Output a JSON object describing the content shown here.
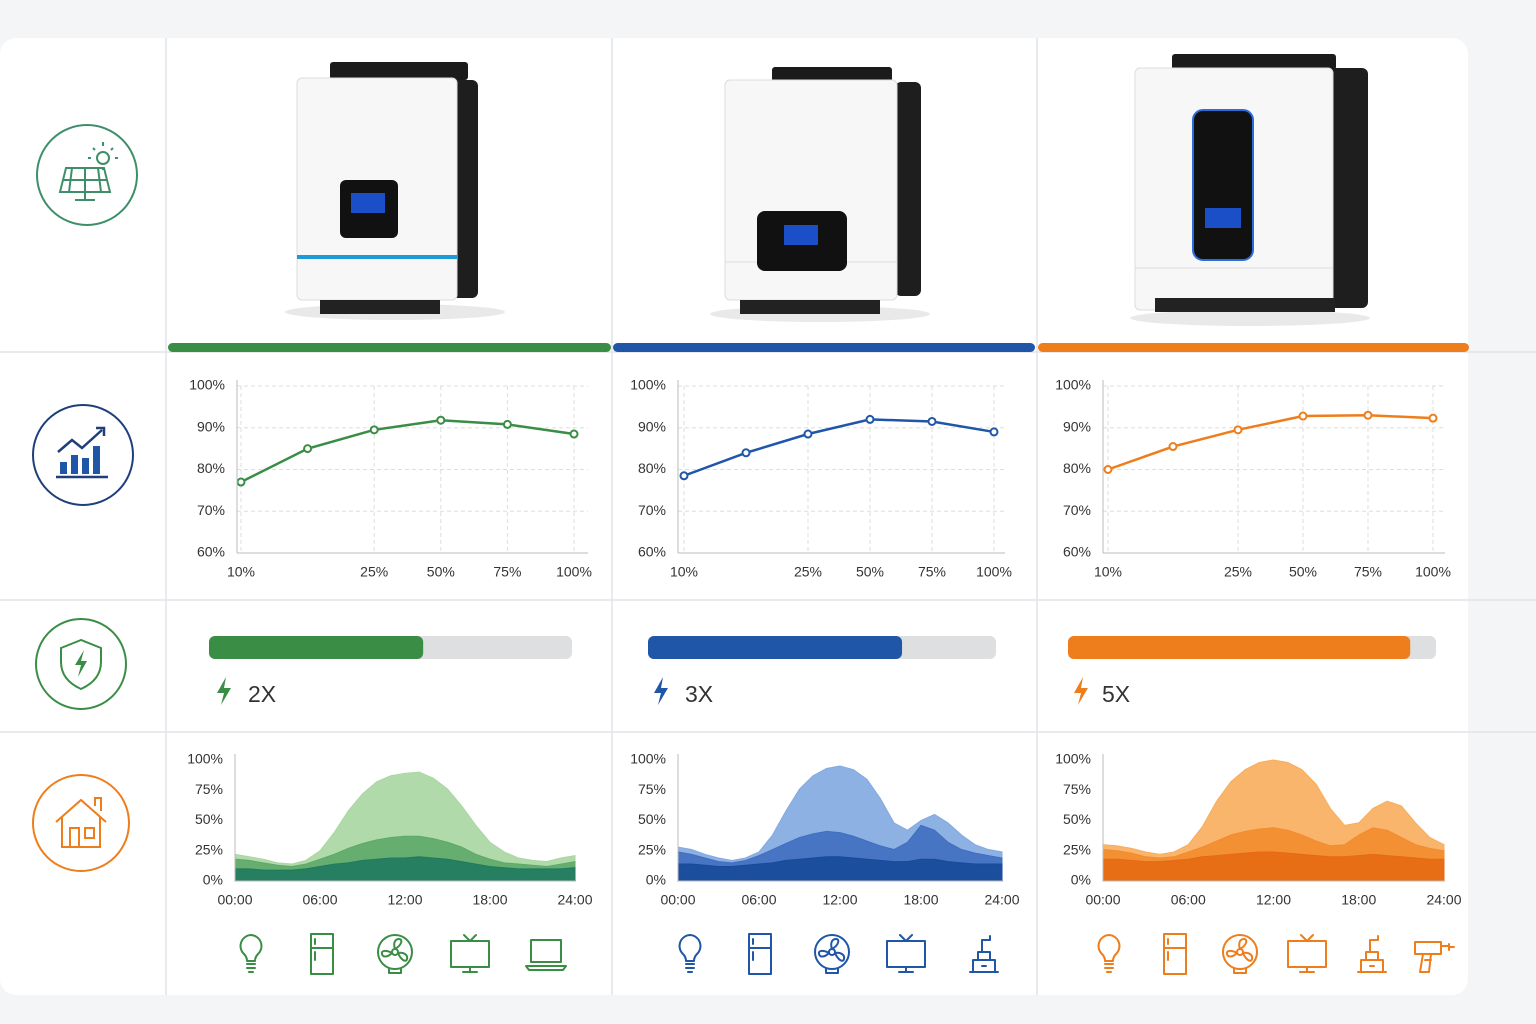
{
  "chart_data": [
    {
      "type": "line",
      "color": "#3a8d45",
      "grid": true,
      "categories": [
        "10%",
        null,
        "25%",
        "50%",
        "75%",
        "100%"
      ],
      "values": [
        77,
        85,
        89.5,
        91.8,
        90.8,
        88.5
      ],
      "ylim": [
        60,
        100
      ],
      "yticks": [
        {
          "value": 60,
          "label": "60%"
        },
        {
          "value": 70,
          "label": "70%"
        },
        {
          "value": 80,
          "label": "80%"
        },
        {
          "value": 90,
          "label": "90%"
        },
        {
          "value": 100,
          "label": "100%"
        }
      ]
    },
    {
      "type": "line",
      "color": "#1f56a8",
      "grid": true,
      "categories": [
        "10%",
        null,
        "25%",
        "50%",
        "75%",
        "100%"
      ],
      "values": [
        78.5,
        84,
        88.5,
        92,
        91.5,
        89
      ],
      "ylim": [
        60,
        100
      ],
      "yticks": [
        {
          "value": 60,
          "label": "60%"
        },
        {
          "value": 70,
          "label": "70%"
        },
        {
          "value": 80,
          "label": "80%"
        },
        {
          "value": 90,
          "label": "90%"
        },
        {
          "value": 100,
          "label": "100%"
        }
      ]
    },
    {
      "type": "line",
      "color": "#ee7d1b",
      "grid": true,
      "categories": [
        "10%",
        null,
        "25%",
        "50%",
        "75%",
        "100%"
      ],
      "values": [
        80,
        85.5,
        89.5,
        92.8,
        93,
        92.3
      ],
      "ylim": [
        60,
        100
      ],
      "yticks": [
        {
          "value": 60,
          "label": "60%"
        },
        {
          "value": 70,
          "label": "70%"
        },
        {
          "value": 80,
          "label": "80%"
        },
        {
          "value": 90,
          "label": "90%"
        },
        {
          "value": 100,
          "label": "100%"
        }
      ]
    },
    {
      "type": "area",
      "grid": false,
      "categories": [
        "00:00",
        null,
        null,
        null,
        null,
        null,
        "06:00",
        null,
        null,
        null,
        null,
        null,
        "12:00",
        null,
        null,
        null,
        null,
        null,
        "18:00",
        null,
        null,
        null,
        null,
        null,
        "24:00"
      ],
      "ylim": [
        0,
        100
      ],
      "yticks": [
        {
          "value": 0,
          "label": "0%"
        },
        {
          "value": 25,
          "label": "25%"
        },
        {
          "value": 50,
          "label": "50%"
        },
        {
          "value": 75,
          "label": "75%"
        },
        {
          "value": 100,
          "label": "100%"
        }
      ],
      "series": [
        {
          "color": "#a9d6a2",
          "values": [
            22,
            20,
            18,
            15,
            14,
            17,
            25,
            40,
            58,
            72,
            82,
            87,
            89,
            90,
            85,
            76,
            62,
            46,
            32,
            24,
            19,
            17,
            16,
            19,
            21
          ]
        },
        {
          "color": "#5ea968",
          "values": [
            18,
            17,
            15,
            13,
            12,
            14,
            18,
            22,
            27,
            31,
            34,
            36,
            37,
            37,
            35,
            32,
            28,
            22,
            18,
            15,
            14,
            13,
            12,
            14,
            16
          ]
        },
        {
          "color": "#1f7a5e",
          "values": [
            10,
            10,
            9,
            9,
            9,
            10,
            12,
            14,
            15,
            17,
            18,
            19,
            19,
            20,
            19,
            18,
            16,
            14,
            12,
            11,
            10,
            10,
            10,
            10,
            11
          ]
        }
      ]
    },
    {
      "type": "area",
      "grid": false,
      "categories": [
        "00:00",
        null,
        null,
        null,
        null,
        null,
        "06:00",
        null,
        null,
        null,
        null,
        null,
        "12:00",
        null,
        null,
        null,
        null,
        null,
        "18:00",
        null,
        null,
        null,
        null,
        null,
        "24:00"
      ],
      "ylim": [
        0,
        100
      ],
      "yticks": [
        {
          "value": 0,
          "label": "0%"
        },
        {
          "value": 25,
          "label": "25%"
        },
        {
          "value": 50,
          "label": "50%"
        },
        {
          "value": 75,
          "label": "75%"
        },
        {
          "value": 100,
          "label": "100%"
        }
      ],
      "series": [
        {
          "color": "#82a9e0",
          "values": [
            28,
            26,
            22,
            19,
            17,
            19,
            24,
            38,
            58,
            76,
            87,
            93,
            95,
            92,
            84,
            68,
            48,
            42,
            50,
            55,
            48,
            38,
            30,
            26,
            24
          ]
        },
        {
          "color": "#3f6fc0",
          "values": [
            24,
            22,
            19,
            16,
            15,
            17,
            21,
            26,
            31,
            36,
            39,
            41,
            40,
            37,
            33,
            29,
            26,
            32,
            46,
            42,
            32,
            26,
            23,
            21,
            19
          ]
        },
        {
          "color": "#174a9a",
          "values": [
            14,
            14,
            13,
            12,
            12,
            13,
            14,
            15,
            17,
            18,
            19,
            20,
            20,
            19,
            18,
            17,
            16,
            16,
            18,
            18,
            16,
            15,
            14,
            14,
            14
          ]
        }
      ]
    },
    {
      "type": "area",
      "grid": false,
      "categories": [
        "00:00",
        null,
        null,
        null,
        null,
        null,
        "06:00",
        null,
        null,
        null,
        null,
        null,
        "12:00",
        null,
        null,
        null,
        null,
        null,
        "18:00",
        null,
        null,
        null,
        null,
        null,
        "24:00"
      ],
      "ylim": [
        0,
        100
      ],
      "yticks": [
        {
          "value": 0,
          "label": "0%"
        },
        {
          "value": 25,
          "label": "25%"
        },
        {
          "value": 50,
          "label": "50%"
        },
        {
          "value": 75,
          "label": "75%"
        },
        {
          "value": 100,
          "label": "100%"
        }
      ],
      "series": [
        {
          "color": "#f8ad5c",
          "values": [
            30,
            29,
            27,
            24,
            22,
            24,
            30,
            45,
            66,
            82,
            92,
            98,
            100,
            98,
            92,
            80,
            60,
            46,
            48,
            60,
            66,
            62,
            48,
            36,
            30
          ]
        },
        {
          "color": "#f28c2d",
          "values": [
            26,
            25,
            23,
            20,
            19,
            20,
            24,
            28,
            33,
            38,
            41,
            43,
            44,
            42,
            38,
            33,
            29,
            30,
            38,
            44,
            42,
            36,
            30,
            27,
            25
          ]
        },
        {
          "color": "#e56a12",
          "values": [
            18,
            18,
            17,
            16,
            16,
            17,
            18,
            20,
            21,
            22,
            23,
            24,
            24,
            23,
            22,
            21,
            20,
            20,
            21,
            22,
            21,
            20,
            19,
            18,
            18
          ]
        }
      ]
    }
  ],
  "surge": [
    {
      "label": "2X",
      "value": 59,
      "color": "#3a8d45"
    },
    {
      "label": "3X",
      "value": 73,
      "color": "#1f56a8"
    },
    {
      "label": "5X",
      "value": 93,
      "color": "#ee7d1b"
    }
  ]
}
